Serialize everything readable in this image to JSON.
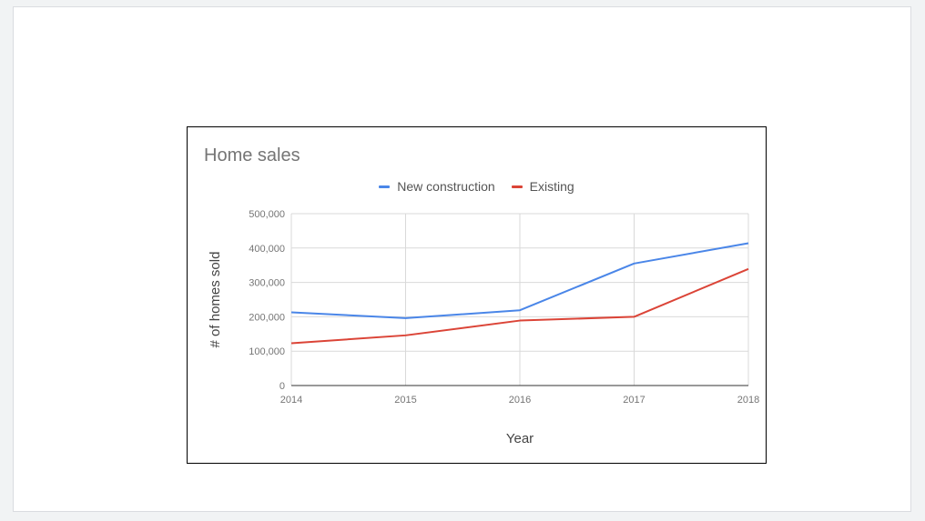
{
  "chart_data": {
    "type": "line",
    "title": "Home sales",
    "xlabel": "Year",
    "ylabel": "# of homes sold",
    "x": [
      2014,
      2015,
      2016,
      2017,
      2018
    ],
    "x_tick_labels": [
      "2014",
      "2015",
      "2016",
      "2017",
      "2018"
    ],
    "ylim": [
      0,
      500000
    ],
    "y_ticks": [
      0,
      100000,
      200000,
      300000,
      400000,
      500000
    ],
    "y_tick_labels": [
      "0",
      "100,000",
      "200,000",
      "300,000",
      "400,000",
      "500,000"
    ],
    "grid": true,
    "legend_position": "top",
    "series": [
      {
        "name": "New construction",
        "color": "#4a86e8",
        "values": [
          213000,
          196000,
          219000,
          355000,
          414000
        ]
      },
      {
        "name": "Existing",
        "color": "#db4437",
        "values": [
          123000,
          146000,
          189000,
          200000,
          339000
        ]
      }
    ]
  }
}
